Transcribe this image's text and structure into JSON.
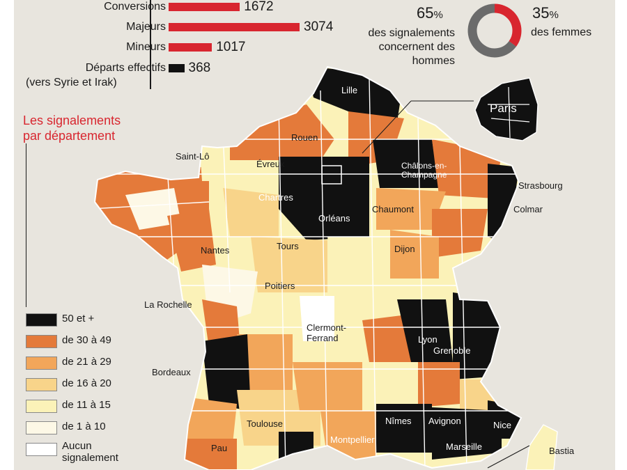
{
  "stats": {
    "rows": [
      {
        "label": "Conversions",
        "value": 1672,
        "display": "1672"
      },
      {
        "label": "Majeurs",
        "value": 3074,
        "display": "3074"
      },
      {
        "label": "Mineurs",
        "value": 1017,
        "display": "1017"
      },
      {
        "label": "Départs effectifs",
        "value": 368,
        "display": "368"
      }
    ],
    "last_row_sublabel": "(vers Syrie et Irak)",
    "bar_color": "#d8262f",
    "last_bar_color": "#111111"
  },
  "gender": {
    "men_pct": "65",
    "men_pct_sign": "%",
    "men_text": "des signalements concernent des hommes",
    "women_pct": "35",
    "women_pct_sign": "%",
    "women_text": "des femmes",
    "men_share": 0.65,
    "men_color": "#6b6b6b",
    "women_color": "#d8262f"
  },
  "map": {
    "title_line1": "Les signalements",
    "title_line2": "par département",
    "legend": [
      {
        "label": "50 et +",
        "color": "#111111"
      },
      {
        "label": "de 30 à 49",
        "color": "#e47a3a"
      },
      {
        "label": "de 21 à 29",
        "color": "#f2a65a"
      },
      {
        "label": "de 16 à 20",
        "color": "#f8d48a"
      },
      {
        "label": "de 11 à 15",
        "color": "#fbf2b8"
      },
      {
        "label": "de 1 à 10",
        "color": "#fdf8e6"
      },
      {
        "label": "Aucun signalement",
        "color": "#ffffff"
      }
    ],
    "cities": [
      {
        "name": "Lille",
        "dark": true
      },
      {
        "name": "Paris",
        "dark": true
      },
      {
        "name": "Rouen",
        "dark": false
      },
      {
        "name": "Saint-Lô",
        "dark": false
      },
      {
        "name": "Évreux",
        "dark": false
      },
      {
        "name": "Châlons-en-Champagne",
        "dark": true
      },
      {
        "name": "Strasbourg",
        "dark": false
      },
      {
        "name": "Chartres",
        "dark": true
      },
      {
        "name": "Chaumont",
        "dark": false
      },
      {
        "name": "Colmar",
        "dark": false
      },
      {
        "name": "Orléans",
        "dark": true
      },
      {
        "name": "Nantes",
        "dark": false
      },
      {
        "name": "Tours",
        "dark": false
      },
      {
        "name": "Dijon",
        "dark": false
      },
      {
        "name": "Poitiers",
        "dark": false
      },
      {
        "name": "La Rochelle",
        "dark": false
      },
      {
        "name": "Clermont-Ferrand",
        "dark": false
      },
      {
        "name": "Lyon",
        "dark": true
      },
      {
        "name": "Grenoble",
        "dark": true
      },
      {
        "name": "Bordeaux",
        "dark": false
      },
      {
        "name": "Nîmes",
        "dark": true
      },
      {
        "name": "Avignon",
        "dark": true
      },
      {
        "name": "Nice",
        "dark": true
      },
      {
        "name": "Toulouse",
        "dark": false
      },
      {
        "name": "Montpellier",
        "dark": true
      },
      {
        "name": "Marseille",
        "dark": true
      },
      {
        "name": "Pau",
        "dark": false
      },
      {
        "name": "Bastia",
        "dark": false
      }
    ]
  }
}
